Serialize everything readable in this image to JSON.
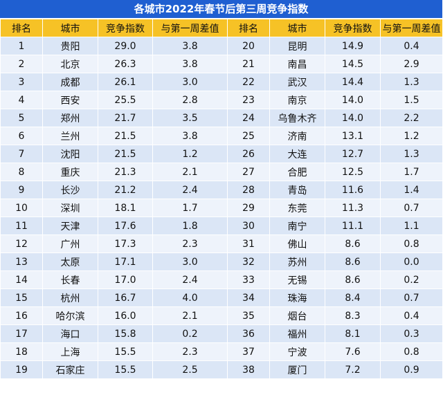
{
  "title": "各城市2022年春节后第三周竞争指数",
  "headers": [
    "排名",
    "城市",
    "竞争指数",
    "与第一周差值",
    "排名",
    "城市",
    "竞争指数",
    "与第一周差值"
  ],
  "rows": [
    {
      "left": {
        "rank": "1",
        "city": "贵阳",
        "index": "29.0",
        "diff": "3.8"
      },
      "right": {
        "rank": "20",
        "city": "昆明",
        "index": "14.9",
        "diff": "0.4"
      }
    },
    {
      "left": {
        "rank": "2",
        "city": "北京",
        "index": "26.3",
        "diff": "3.8"
      },
      "right": {
        "rank": "21",
        "city": "南昌",
        "index": "14.5",
        "diff": "2.9"
      }
    },
    {
      "left": {
        "rank": "3",
        "city": "成都",
        "index": "26.1",
        "diff": "3.0"
      },
      "right": {
        "rank": "22",
        "city": "武汉",
        "index": "14.4",
        "diff": "1.3"
      }
    },
    {
      "left": {
        "rank": "4",
        "city": "西安",
        "index": "25.5",
        "diff": "2.8"
      },
      "right": {
        "rank": "23",
        "city": "南京",
        "index": "14.0",
        "diff": "1.5"
      }
    },
    {
      "left": {
        "rank": "5",
        "city": "郑州",
        "index": "21.7",
        "diff": "3.5"
      },
      "right": {
        "rank": "24",
        "city": "乌鲁木齐",
        "index": "14.0",
        "diff": "2.2"
      }
    },
    {
      "left": {
        "rank": "6",
        "city": "兰州",
        "index": "21.5",
        "diff": "3.8"
      },
      "right": {
        "rank": "25",
        "city": "济南",
        "index": "13.1",
        "diff": "1.2"
      }
    },
    {
      "left": {
        "rank": "7",
        "city": "沈阳",
        "index": "21.5",
        "diff": "1.2"
      },
      "right": {
        "rank": "26",
        "city": "大连",
        "index": "12.7",
        "diff": "1.3"
      }
    },
    {
      "left": {
        "rank": "8",
        "city": "重庆",
        "index": "21.3",
        "diff": "2.1"
      },
      "right": {
        "rank": "27",
        "city": "合肥",
        "index": "12.5",
        "diff": "1.7"
      }
    },
    {
      "left": {
        "rank": "9",
        "city": "长沙",
        "index": "21.2",
        "diff": "2.4"
      },
      "right": {
        "rank": "28",
        "city": "青岛",
        "index": "11.6",
        "diff": "1.4"
      }
    },
    {
      "left": {
        "rank": "10",
        "city": "深圳",
        "index": "18.1",
        "diff": "1.7"
      },
      "right": {
        "rank": "29",
        "city": "东莞",
        "index": "11.3",
        "diff": "0.7"
      }
    },
    {
      "left": {
        "rank": "11",
        "city": "天津",
        "index": "17.6",
        "diff": "1.8"
      },
      "right": {
        "rank": "30",
        "city": "南宁",
        "index": "11.1",
        "diff": "1.1"
      }
    },
    {
      "left": {
        "rank": "12",
        "city": "广州",
        "index": "17.3",
        "diff": "2.3"
      },
      "right": {
        "rank": "31",
        "city": "佛山",
        "index": "8.6",
        "diff": "0.8"
      }
    },
    {
      "left": {
        "rank": "13",
        "city": "太原",
        "index": "17.1",
        "diff": "3.0"
      },
      "right": {
        "rank": "32",
        "city": "苏州",
        "index": "8.6",
        "diff": "0.0"
      }
    },
    {
      "left": {
        "rank": "14",
        "city": "长春",
        "index": "17.0",
        "diff": "2.4"
      },
      "right": {
        "rank": "33",
        "city": "无锡",
        "index": "8.6",
        "diff": "0.2"
      }
    },
    {
      "left": {
        "rank": "15",
        "city": "杭州",
        "index": "16.7",
        "diff": "4.0"
      },
      "right": {
        "rank": "34",
        "city": "珠海",
        "index": "8.4",
        "diff": "0.7"
      }
    },
    {
      "left": {
        "rank": "16",
        "city": "哈尔滨",
        "index": "16.0",
        "diff": "2.1"
      },
      "right": {
        "rank": "35",
        "city": "烟台",
        "index": "8.3",
        "diff": "0.4"
      }
    },
    {
      "left": {
        "rank": "17",
        "city": "海口",
        "index": "15.8",
        "diff": "0.2"
      },
      "right": {
        "rank": "36",
        "city": "福州",
        "index": "8.1",
        "diff": "0.3"
      }
    },
    {
      "left": {
        "rank": "18",
        "city": "上海",
        "index": "15.5",
        "diff": "2.3"
      },
      "right": {
        "rank": "37",
        "city": "宁波",
        "index": "7.6",
        "diff": "0.8"
      }
    },
    {
      "left": {
        "rank": "19",
        "city": "石家庄",
        "index": "15.5",
        "diff": "2.5"
      },
      "right": {
        "rank": "38",
        "city": "厦门",
        "index": "7.2",
        "diff": "0.9"
      }
    }
  ],
  "colors": {
    "title_bg": "#1f5fd1",
    "header_bg": "#f6c226",
    "row_bg": "#dbe6f6",
    "row_alt_bg": "#eef3fb"
  }
}
